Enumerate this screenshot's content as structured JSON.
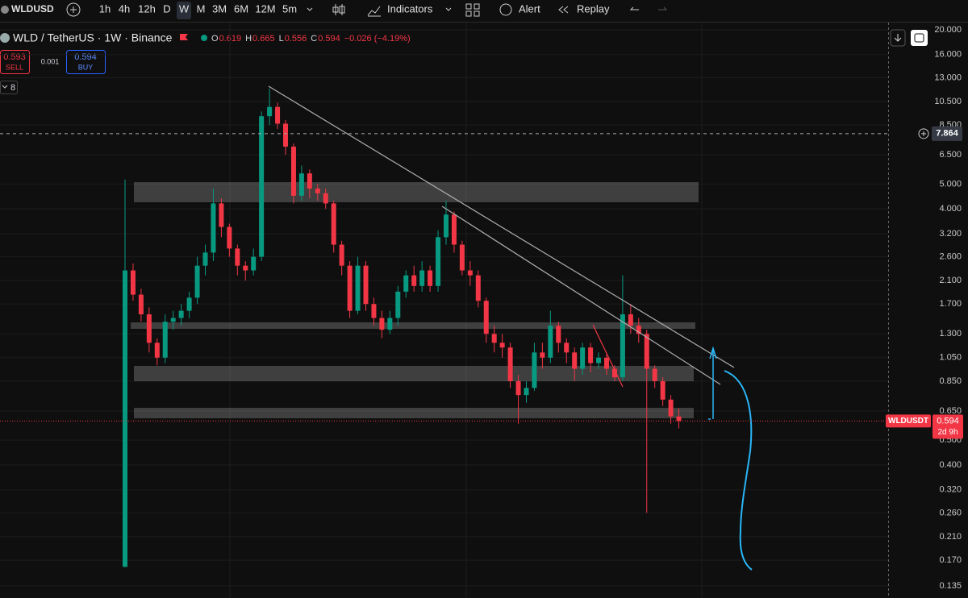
{
  "toolbar": {
    "symbol": "WLDUSD",
    "intervals": [
      "1h",
      "4h",
      "12h",
      "D",
      "W",
      "M",
      "3M",
      "6M",
      "12M",
      "5m"
    ],
    "indicators": "Indicators",
    "alert": "Alert",
    "replay": "Replay"
  },
  "legend": {
    "title": "WLD / TetherUS · 1W · Binance",
    "ohlc": [
      {
        "label": "O",
        "value": "0.619"
      },
      {
        "label": "H",
        "value": "0.665"
      },
      {
        "label": "L",
        "value": "0.556"
      },
      {
        "label": "C",
        "value": "0.594"
      }
    ],
    "change": "−0.026 (−4.19%)"
  },
  "trade": {
    "sell_price": "0.593",
    "sell": "SELL",
    "spread": "0.001",
    "buy_price": "0.594",
    "buy": "BUY"
  },
  "indicator_count": "8",
  "chart_data": {
    "type": "candlestick",
    "log_scale": true,
    "up_color": "#089981",
    "down_color": "#f23645",
    "open": [
      0.16,
      2.3,
      1.85,
      1.55,
      1.2,
      1.05,
      1.45,
      1.5,
      1.6,
      1.8,
      2.4,
      2.7,
      4.2,
      3.4,
      2.8,
      2.4,
      2.3,
      2.6,
      9.2,
      10.0,
      8.6,
      7.0,
      4.5,
      5.5,
      4.8,
      4.6,
      4.2,
      2.9,
      2.4,
      1.6,
      2.4,
      1.7,
      1.5,
      1.35,
      1.5,
      1.9,
      2.2,
      2.0,
      2.3,
      2.0,
      3.1,
      3.8,
      2.9,
      2.3,
      2.2,
      1.75,
      1.3,
      1.2,
      1.15,
      0.85,
      0.75,
      0.8,
      1.1,
      1.05,
      1.4,
      1.2,
      1.1,
      0.95,
      1.15,
      1.0,
      1.05,
      0.95,
      0.88,
      1.55,
      1.4,
      1.3,
      0.95,
      0.85,
      0.72,
      0.619
    ],
    "high": [
      5.2,
      2.45,
      1.95,
      1.65,
      1.25,
      1.55,
      1.6,
      1.7,
      1.9,
      2.6,
      2.9,
      4.8,
      4.4,
      3.5,
      2.9,
      2.5,
      2.8,
      9.6,
      11.8,
      10.4,
      8.9,
      7.2,
      5.9,
      5.7,
      5.0,
      4.8,
      4.3,
      3.0,
      2.5,
      2.6,
      2.5,
      1.8,
      1.6,
      1.6,
      2.0,
      2.3,
      2.4,
      2.5,
      2.4,
      3.3,
      4.3,
      3.9,
      3.0,
      2.5,
      2.3,
      1.8,
      1.4,
      1.3,
      1.2,
      0.9,
      0.85,
      1.2,
      1.2,
      1.6,
      1.45,
      1.25,
      1.15,
      1.2,
      1.2,
      1.1,
      1.1,
      0.98,
      2.2,
      1.7,
      1.5,
      1.35,
      0.98,
      0.88,
      0.75,
      0.665
    ],
    "low": [
      0.16,
      1.75,
      1.45,
      1.1,
      0.98,
      1.0,
      1.35,
      1.4,
      1.5,
      1.7,
      2.2,
      2.5,
      3.1,
      2.6,
      2.2,
      2.1,
      2.2,
      2.5,
      8.5,
      8.2,
      6.5,
      4.2,
      4.3,
      4.4,
      4.3,
      4.0,
      2.7,
      2.2,
      1.5,
      1.55,
      1.6,
      1.4,
      1.25,
      1.3,
      1.4,
      1.8,
      1.9,
      1.9,
      1.9,
      1.9,
      2.9,
      2.7,
      2.2,
      2.0,
      1.65,
      1.2,
      1.1,
      1.05,
      0.8,
      0.58,
      0.7,
      0.78,
      0.95,
      1.0,
      1.1,
      1.0,
      0.85,
      0.9,
      0.92,
      0.95,
      0.9,
      0.85,
      0.85,
      1.3,
      1.2,
      0.26,
      0.8,
      0.68,
      0.58,
      0.556
    ],
    "close": [
      2.3,
      1.85,
      1.55,
      1.2,
      1.05,
      1.45,
      1.5,
      1.6,
      1.8,
      2.4,
      2.7,
      4.2,
      3.4,
      2.8,
      2.4,
      2.3,
      2.6,
      9.2,
      10.0,
      8.6,
      7.0,
      4.5,
      5.5,
      4.8,
      4.6,
      4.2,
      2.9,
      2.4,
      1.6,
      2.4,
      1.7,
      1.5,
      1.35,
      1.5,
      1.9,
      2.2,
      2.0,
      2.3,
      2.0,
      3.1,
      3.8,
      2.9,
      2.3,
      2.2,
      1.75,
      1.3,
      1.2,
      1.15,
      0.85,
      0.75,
      0.8,
      1.1,
      1.05,
      1.4,
      1.2,
      1.1,
      0.95,
      1.15,
      1.0,
      1.05,
      0.95,
      0.88,
      1.55,
      1.4,
      1.3,
      0.95,
      0.85,
      0.72,
      0.619,
      0.594
    ],
    "ylim": [
      0.121,
      21.04
    ],
    "yticks": [
      {
        "value": 20,
        "label": "20.000"
      },
      {
        "value": 16,
        "label": "16.000"
      },
      {
        "value": 13,
        "label": "13.000"
      },
      {
        "value": 10.5,
        "label": "10.500"
      },
      {
        "value": 8.5,
        "label": "8.500"
      },
      {
        "value": 6.5,
        "label": "6.500"
      },
      {
        "value": 5,
        "label": "5.000"
      },
      {
        "value": 4,
        "label": "4.000"
      },
      {
        "value": 3.2,
        "label": "3.200"
      },
      {
        "value": 2.6,
        "label": "2.600"
      },
      {
        "value": 2.1,
        "label": "2.100"
      },
      {
        "value": 1.7,
        "label": "1.700"
      },
      {
        "value": 1.3,
        "label": "1.300"
      },
      {
        "value": 1.05,
        "label": "1.050"
      },
      {
        "value": 0.85,
        "label": "0.850"
      },
      {
        "value": 0.65,
        "label": "0.650"
      },
      {
        "value": 0.5,
        "label": "0.500"
      },
      {
        "value": 0.4,
        "label": "0.400"
      },
      {
        "value": 0.32,
        "label": "0.320"
      },
      {
        "value": 0.26,
        "label": "0.260"
      },
      {
        "value": 0.21,
        "label": "0.210"
      },
      {
        "value": 0.17,
        "label": "0.170"
      },
      {
        "value": 0.135,
        "label": "0.135"
      }
    ],
    "grid": true,
    "crosshair": 7.864,
    "last_price": {
      "symbol": "WLDUSDT",
      "value": 0.594,
      "countdown": "2d 9h"
    }
  }
}
